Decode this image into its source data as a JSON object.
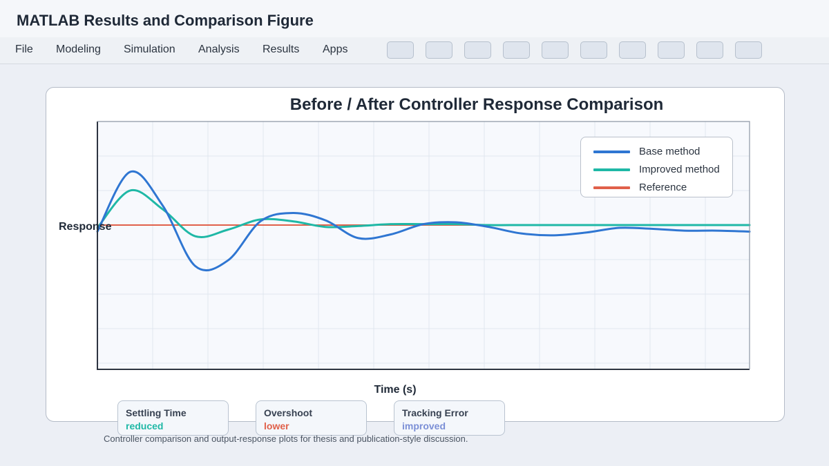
{
  "app": {
    "title": "MATLAB Results and Comparison Figure"
  },
  "menu": [
    "File",
    "Modeling",
    "Simulation",
    "Analysis",
    "Results",
    "Apps"
  ],
  "toolbar_button_count": 10,
  "chart_data": {
    "type": "line",
    "title": "Before / After Controller Response Comparison",
    "xlabel": "Time (s)",
    "ylabel": "Response",
    "grid": true,
    "legend_placement": "top-right",
    "series": [
      {
        "name": "Base method",
        "color": "#2f76d2",
        "x": [
          0,
          0.05,
          0.1,
          0.15,
          0.2,
          0.25,
          0.3,
          0.35,
          0.4,
          0.45,
          0.5,
          0.55,
          0.6,
          0.65,
          0.7,
          0.75,
          0.8,
          0.85,
          0.9,
          0.95,
          1.0
        ],
        "y": [
          -0.07,
          0.57,
          0.21,
          -0.44,
          -0.38,
          0.04,
          0.13,
          0.05,
          -0.14,
          -0.1,
          0.01,
          0.03,
          -0.02,
          -0.09,
          -0.11,
          -0.08,
          -0.03,
          -0.04,
          -0.06,
          -0.06,
          -0.07
        ]
      },
      {
        "name": "Improved method",
        "color": "#1fb8a6",
        "x": [
          0,
          0.05,
          0.1,
          0.15,
          0.2,
          0.25,
          0.3,
          0.35,
          0.4,
          0.45,
          0.5,
          0.55,
          0.6,
          0.65,
          0.7,
          0.75,
          0.8,
          0.85,
          0.9,
          0.95,
          1.0
        ],
        "y": [
          -0.03,
          0.37,
          0.17,
          -0.12,
          -0.05,
          0.06,
          0.04,
          -0.02,
          -0.01,
          0.01,
          0.01,
          0.01,
          0.0,
          0.0,
          0.0,
          0.0,
          0.0,
          0.0,
          0.0,
          0.0,
          0.0
        ]
      },
      {
        "name": "Reference",
        "color": "#e0604a",
        "x": [
          0,
          1.0
        ],
        "y": [
          0,
          0
        ]
      }
    ]
  },
  "metrics": [
    {
      "name": "Settling Time",
      "value": "reduced",
      "color": "#1fb8a6"
    },
    {
      "name": "Overshoot",
      "value": "lower",
      "color": "#e0604a"
    },
    {
      "name": "Tracking Error",
      "value": "improved",
      "color": "#7b8fd6"
    }
  ],
  "caption": "Controller comparison and output-response plots for thesis and publication-style discussion."
}
